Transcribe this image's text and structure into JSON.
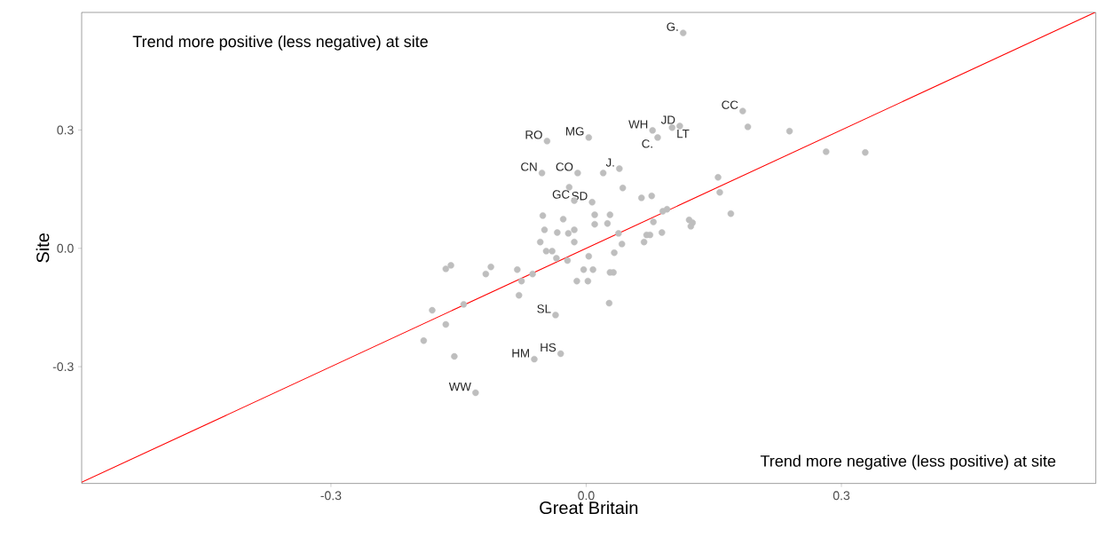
{
  "chart_data": {
    "type": "scatter",
    "xlabel": "Great Britain",
    "ylabel": "Site",
    "xlim": [
      -0.593,
      0.599
    ],
    "ylim": [
      -0.596,
      0.598
    ],
    "xticks": [
      -0.3,
      {
        "value": 0,
        "label": "0.0"
      },
      0.3
    ],
    "yticks": [
      -0.3,
      {
        "value": 0,
        "label": "0.0"
      },
      0.3
    ],
    "series": [
      {
        "color": "#bebebe",
        "x": [
          0.114,
          -0.046,
          0.003,
          0.078,
          0.084,
          0.101,
          0.11,
          0.184,
          0.19,
          0.239,
          0.282,
          0.328,
          -0.052,
          -0.01,
          0.02,
          0.039,
          -0.02,
          0.043,
          -0.014,
          0.007,
          0.065,
          0.077,
          0.155,
          0.157,
          0.17,
          -0.051,
          -0.027,
          0.01,
          0.028,
          0.01,
          0.025,
          -0.049,
          -0.034,
          -0.021,
          -0.014,
          -0.054,
          -0.014,
          0.038,
          0.042,
          0.033,
          -0.047,
          -0.04,
          -0.035,
          -0.022,
          0.003,
          -0.003,
          0.008,
          0.028,
          0.032,
          -0.011,
          0.002,
          -0.081,
          -0.076,
          -0.063,
          0.068,
          0.071,
          0.075,
          0.089,
          0.079,
          0.09,
          0.095,
          0.121,
          0.125,
          0.123,
          -0.165,
          -0.159,
          -0.118,
          -0.112,
          -0.079,
          -0.144,
          -0.181,
          -0.165,
          -0.191,
          -0.155,
          -0.036,
          0.027,
          -0.03,
          -0.061,
          -0.13
        ],
        "values": [
          0.546,
          0.272,
          0.281,
          0.299,
          0.281,
          0.306,
          0.31,
          0.348,
          0.308,
          0.297,
          0.245,
          0.243,
          0.191,
          0.191,
          0.191,
          0.202,
          0.155,
          0.153,
          0.121,
          0.117,
          0.128,
          0.133,
          0.18,
          0.142,
          0.088,
          0.083,
          0.074,
          0.085,
          0.085,
          0.061,
          0.063,
          0.047,
          0.04,
          0.038,
          0.047,
          0.016,
          0.016,
          0.038,
          0.011,
          -0.011,
          -0.007,
          -0.007,
          -0.025,
          -0.031,
          -0.02,
          -0.054,
          -0.054,
          -0.061,
          -0.061,
          -0.083,
          -0.083,
          -0.054,
          -0.083,
          -0.065,
          0.016,
          0.034,
          0.034,
          0.04,
          0.067,
          0.094,
          0.099,
          0.072,
          0.065,
          0.056,
          -0.052,
          -0.043,
          -0.065,
          -0.047,
          -0.119,
          -0.142,
          -0.157,
          -0.193,
          -0.234,
          -0.274,
          -0.169,
          -0.139,
          -0.267,
          -0.281,
          -0.366
        ]
      },
      {
        "type": "line",
        "color": "#ff0000",
        "x": [
          -0.593,
          0.598
        ],
        "values": [
          -0.593,
          0.598
        ]
      }
    ],
    "annotations": [
      "Trend more positive (less negative) at site",
      "Trend more negative (less positive) at site",
      {
        "text": "G.",
        "x": 0.114,
        "y": 0.546
      },
      {
        "text": "RO",
        "x": -0.046,
        "y": 0.272
      },
      {
        "text": "MG",
        "x": 0.003,
        "y": 0.281
      },
      {
        "text": "WH",
        "x": 0.078,
        "y": 0.299
      },
      {
        "text": "JD",
        "x": 0.11,
        "y": 0.31
      },
      {
        "text": "LT",
        "x": 0.101,
        "y": 0.306
      },
      {
        "text": "C.",
        "x": 0.084,
        "y": 0.281
      },
      {
        "text": "CC",
        "x": 0.184,
        "y": 0.348
      },
      {
        "text": "CN",
        "x": -0.052,
        "y": 0.191
      },
      {
        "text": "CO",
        "x": -0.01,
        "y": 0.191
      },
      {
        "text": "J.",
        "x": 0.039,
        "y": 0.202
      },
      {
        "text": "SD",
        "x": 0.007,
        "y": 0.117
      },
      {
        "text": "GC",
        "x": -0.014,
        "y": 0.121
      },
      {
        "text": "SL",
        "x": -0.036,
        "y": -0.169
      },
      {
        "text": "HS",
        "x": -0.03,
        "y": -0.267
      },
      {
        "text": "HM",
        "x": -0.061,
        "y": -0.281
      },
      {
        "text": "WW",
        "x": -0.13,
        "y": -0.366
      }
    ]
  }
}
